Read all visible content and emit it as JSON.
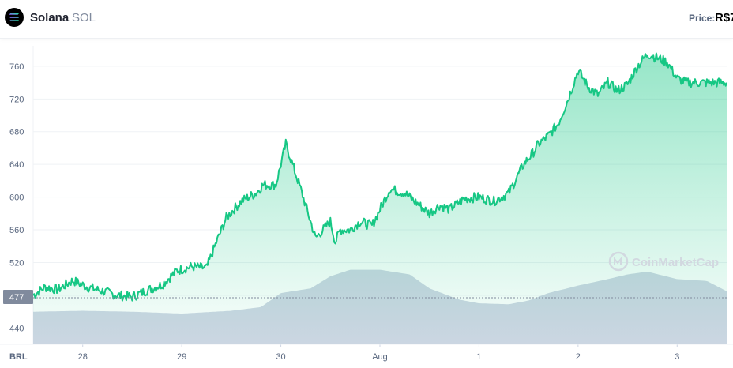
{
  "header": {
    "coin_name": "Solana",
    "coin_symbol": "SOL",
    "price_label": "Price:",
    "price_value": "R$7"
  },
  "watermark": "CoinMarketCap",
  "colors": {
    "line": "#16c784",
    "volume": "#cfd6e4",
    "current_badge": "#808a9d",
    "grid": "#eff2f5"
  },
  "chart_data": {
    "type": "area",
    "currency_label": "BRL",
    "current_value": "477",
    "current_value_number": 477,
    "ylim": [
      420,
      785
    ],
    "y_ticks": [
      440,
      480,
      520,
      560,
      600,
      640,
      680,
      720,
      760
    ],
    "y_tick_labels": [
      "440",
      "520",
      "560",
      "600",
      "640",
      "680",
      "720",
      "760"
    ],
    "xlim": [
      0,
      7.0
    ],
    "x_ticks": [
      {
        "x": 0.5,
        "label": "28"
      },
      {
        "x": 1.5,
        "label": "29"
      },
      {
        "x": 2.5,
        "label": "30"
      },
      {
        "x": 3.5,
        "label": "Aug"
      },
      {
        "x": 4.5,
        "label": "1"
      },
      {
        "x": 5.5,
        "label": "2"
      },
      {
        "x": 6.5,
        "label": "3"
      }
    ],
    "series": [
      {
        "kind": "price",
        "x": [
          0,
          0.12,
          0.25,
          0.4,
          0.55,
          0.7,
          0.85,
          1.0,
          1.15,
          1.3,
          1.45,
          1.6,
          1.75,
          1.85,
          1.95,
          2.1,
          2.25,
          2.32,
          2.45,
          2.55,
          2.7,
          2.85,
          3.0,
          3.05,
          3.1,
          3.2,
          3.3,
          3.42,
          3.5,
          3.6,
          3.75,
          3.9,
          4.0,
          4.1,
          4.2,
          4.35,
          4.5,
          4.65,
          4.8,
          4.95,
          5.05,
          5.1,
          5.2,
          5.3,
          5.4,
          5.5,
          5.6,
          5.7,
          5.8,
          5.9,
          6.0,
          6.1,
          6.2,
          6.3,
          6.4,
          6.5,
          6.6,
          6.7,
          6.8,
          6.9,
          7.0
        ],
        "values": [
          480,
          490,
          487,
          498,
          490,
          485,
          480,
          478,
          486,
          493,
          510,
          515,
          513,
          545,
          575,
          595,
          605,
          615,
          615,
          665,
          610,
          550,
          570,
          545,
          560,
          560,
          570,
          565,
          585,
          610,
          605,
          590,
          580,
          590,
          585,
          598,
          600,
          595,
          605,
          640,
          655,
          665,
          675,
          690,
          720,
          755,
          735,
          725,
          740,
          730,
          738,
          760,
          775,
          770,
          765,
          745,
          740,
          740,
          740,
          740,
          740
        ]
      },
      {
        "kind": "volume",
        "x": [
          0,
          0.5,
          1.0,
          1.5,
          2.0,
          2.3,
          2.5,
          2.8,
          3.0,
          3.2,
          3.5,
          3.8,
          4.0,
          4.3,
          4.5,
          4.8,
          5.0,
          5.2,
          5.5,
          5.8,
          6.0,
          6.2,
          6.5,
          6.8,
          7.0
        ],
        "values": [
          35,
          36,
          35,
          33,
          36,
          40,
          55,
          60,
          73,
          80,
          80,
          75,
          60,
          48,
          44,
          43,
          47,
          55,
          63,
          70,
          75,
          78,
          70,
          68,
          57
        ]
      }
    ]
  }
}
